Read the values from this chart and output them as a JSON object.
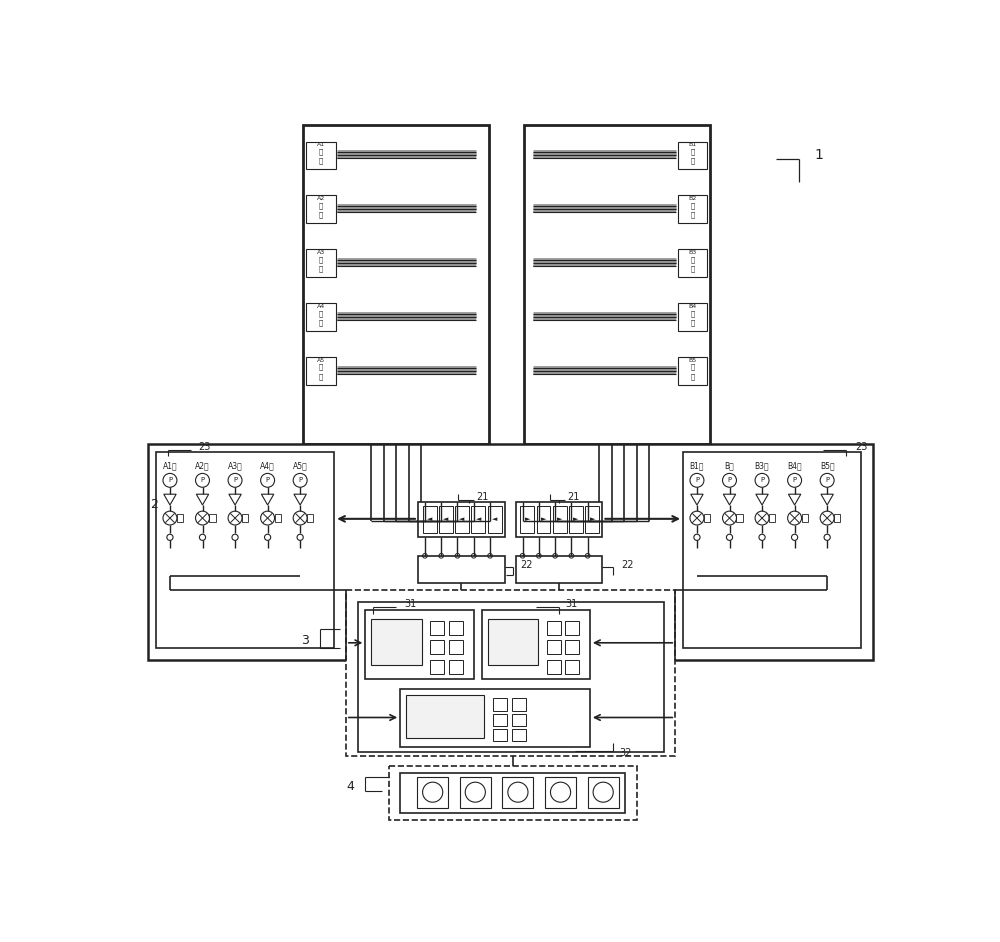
{
  "bg_color": "#ffffff",
  "lc": "#222222",
  "fig_width": 10.0,
  "fig_height": 9.42,
  "zones_A": [
    "A1区",
    "A2区",
    "A3区",
    "A4区",
    "A5区"
  ],
  "zones_B": [
    "B1区",
    "B区",
    "B3区",
    "B4区",
    "B5区"
  ],
  "row_labels_A": [
    "传感\nA1",
    "传感\nA2",
    "传感\nA3",
    "传感\nA4",
    "传感\nA5"
  ],
  "row_labels_B": [
    "传感\nB1",
    "传感\nB2",
    "传感\nB3",
    "传感\nB4",
    "传感\nB5"
  ]
}
